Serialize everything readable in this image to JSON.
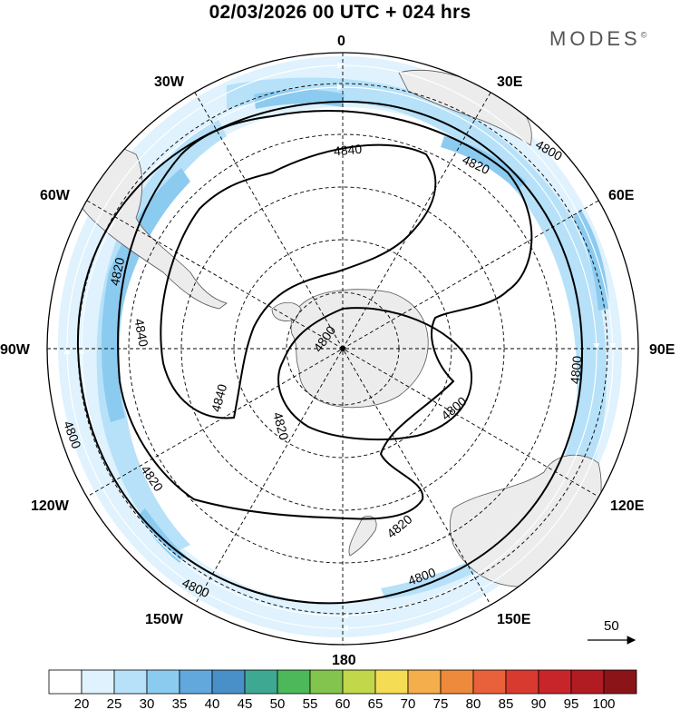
{
  "title": "02/03/2026  00 UTC  + 024 hrs",
  "brand": "MODES",
  "brand_mark": "©",
  "longitude_labels": {
    "lon_0": "0",
    "lon_30e": "30E",
    "lon_60e": "60E",
    "lon_90e": "90E",
    "lon_120e": "120E",
    "lon_150e": "150E",
    "lon_180": "180",
    "lon_150w": "150W",
    "lon_120w": "120W",
    "lon_90w": "90W",
    "lon_60w": "60W",
    "lon_30w": "30W"
  },
  "contour_labels": [
    "4800",
    "4820",
    "4840"
  ],
  "reference_vector": {
    "label": "50"
  },
  "colorbar": {
    "labels": [
      "20",
      "25",
      "30",
      "35",
      "40",
      "45",
      "50",
      "55",
      "60",
      "65",
      "70",
      "75",
      "80",
      "85",
      "90",
      "95",
      "100"
    ],
    "colors": [
      "#ffffff",
      "#dff2fd",
      "#b6e1f9",
      "#8ccbf0",
      "#62a8dd",
      "#4a90c8",
      "#3fa892",
      "#4db85a",
      "#82c44e",
      "#c2d74a",
      "#f5dc55",
      "#f4ae4b",
      "#ee8a3c",
      "#e8613a",
      "#d93a2f",
      "#c8252b",
      "#b01c22",
      "#8b1418"
    ]
  }
}
